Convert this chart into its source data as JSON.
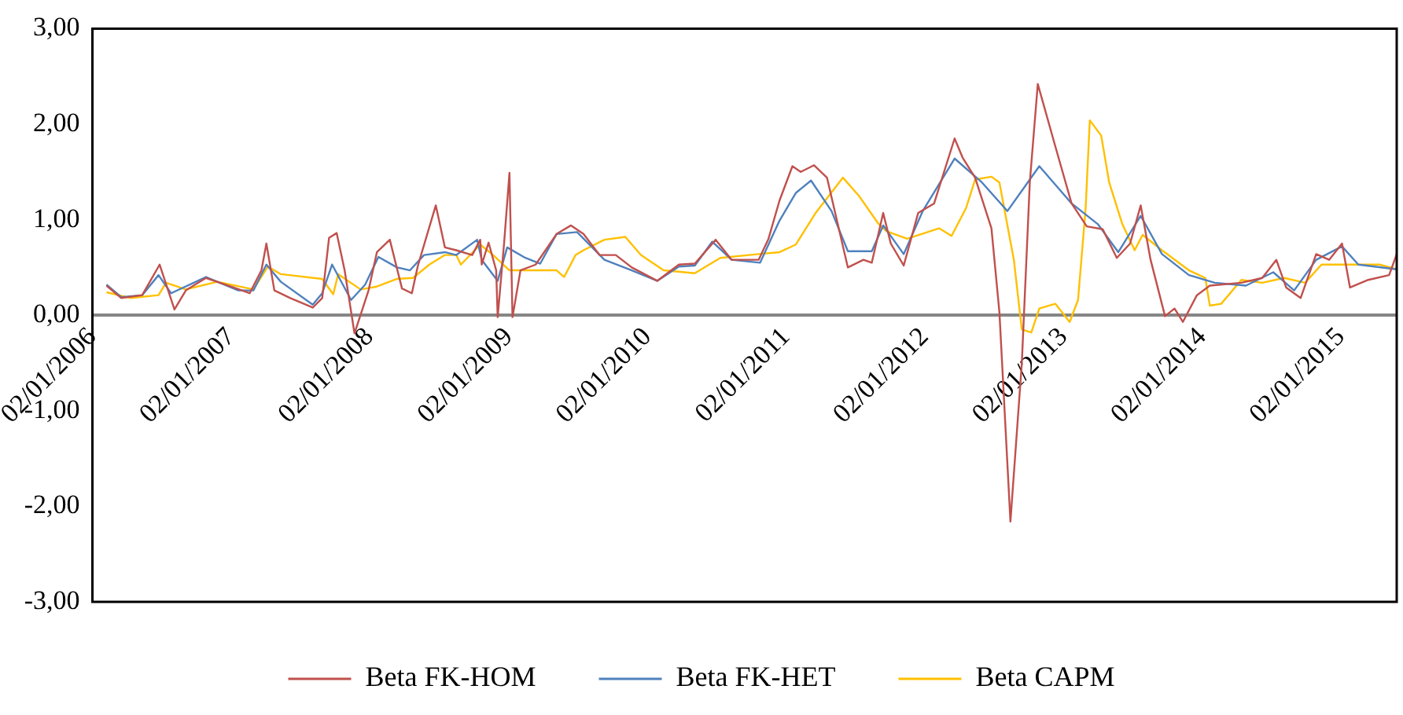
{
  "chart_data": {
    "type": "line",
    "xlim": [
      "2006-01-02",
      "2015-05-29"
    ],
    "ylim": [
      -3,
      3
    ],
    "xticks": [
      {
        "value": "2006-01-02",
        "label": "02/01/2006"
      },
      {
        "value": "2007-01-02",
        "label": "02/01/2007"
      },
      {
        "value": "2008-01-02",
        "label": "02/01/2008"
      },
      {
        "value": "2009-01-02",
        "label": "02/01/2009"
      },
      {
        "value": "2010-01-02",
        "label": "02/01/2010"
      },
      {
        "value": "2011-01-02",
        "label": "02/01/2011"
      },
      {
        "value": "2012-01-02",
        "label": "02/01/2012"
      },
      {
        "value": "2013-01-02",
        "label": "02/01/2013"
      },
      {
        "value": "2014-01-02",
        "label": "02/01/2014"
      },
      {
        "value": "2015-01-02",
        "label": "02/01/2015"
      }
    ],
    "yticks": [
      {
        "value": -3,
        "label": "-3,00"
      },
      {
        "value": -2,
        "label": "-2,00"
      },
      {
        "value": -1,
        "label": "-1,00"
      },
      {
        "value": 0,
        "label": "0,00"
      },
      {
        "value": 1,
        "label": "1,00"
      },
      {
        "value": 2,
        "label": "2,00"
      },
      {
        "value": 3,
        "label": "3,00"
      }
    ],
    "grid": false,
    "legend": "bottom",
    "marker": "none",
    "line_style": "solid",
    "series": [
      {
        "name": "Beta FK-HOM",
        "color": "#c0504d",
        "x": [
          "2006-02-08",
          "2006-03-19",
          "2006-05-13",
          "2006-06-28",
          "2006-08-06",
          "2006-09-05",
          "2006-10-28",
          "2007-01-09",
          "2007-02-20",
          "2007-03-23",
          "2007-04-05",
          "2007-04-26",
          "2007-06-07",
          "2007-08-05",
          "2007-08-30",
          "2007-09-17",
          "2007-10-07",
          "2007-10-28",
          "2007-11-23",
          "2007-12-30",
          "2008-01-21",
          "2008-02-24",
          "2008-03-27",
          "2008-04-22",
          "2008-05-08",
          "2008-06-24",
          "2008-07-18",
          "2008-08-17",
          "2008-09-28",
          "2008-10-19",
          "2008-10-23",
          "2008-11-10",
          "2008-11-30",
          "2008-12-04",
          "2008-12-21",
          "2009-01-04",
          "2009-01-12",
          "2009-02-02",
          "2009-03-14",
          "2009-05-08",
          "2009-06-15",
          "2009-07-18",
          "2009-08-29",
          "2009-10-11",
          "2009-11-22",
          "2010-01-28",
          "2010-03-26",
          "2010-05-07",
          "2010-07-01",
          "2010-08-12",
          "2010-10-22",
          "2010-11-17",
          "2010-12-16",
          "2011-01-19",
          "2011-02-10",
          "2011-03-17",
          "2011-04-20",
          "2011-06-14",
          "2011-07-25",
          "2011-08-16",
          "2011-09-15",
          "2011-10-05",
          "2011-11-08",
          "2011-12-16",
          "2012-01-27",
          "2012-03-21",
          "2012-04-11",
          "2012-05-14",
          "2012-06-26",
          "2012-07-17",
          "2012-08-15",
          "2012-09-14",
          "2012-10-05",
          "2012-10-26",
          "2012-12-11",
          "2013-01-23",
          "2013-03-04",
          "2013-04-15",
          "2013-05-22",
          "2013-06-26",
          "2013-07-24",
          "2013-08-19",
          "2013-09-26",
          "2013-10-21",
          "2013-11-12",
          "2013-12-19",
          "2014-01-22",
          "2014-04-15",
          "2014-06-09",
          "2014-07-16",
          "2014-08-11",
          "2014-09-18",
          "2014-10-29",
          "2014-12-02",
          "2015-01-05",
          "2015-01-26",
          "2015-03-15",
          "2015-05-09",
          "2015-05-29"
        ],
        "values": [
          0.31,
          0.18,
          0.21,
          0.53,
          0.06,
          0.26,
          0.39,
          0.29,
          0.23,
          0.47,
          0.75,
          0.26,
          0.18,
          0.08,
          0.18,
          0.81,
          0.86,
          0.47,
          -0.19,
          0.26,
          0.66,
          0.79,
          0.28,
          0.23,
          0.52,
          1.15,
          0.71,
          0.68,
          0.63,
          0.79,
          0.53,
          0.76,
          0.47,
          -0.02,
          0.76,
          1.49,
          -0.02,
          0.47,
          0.53,
          0.85,
          0.94,
          0.85,
          0.63,
          0.63,
          0.5,
          0.36,
          0.53,
          0.54,
          0.79,
          0.58,
          0.58,
          0.8,
          1.2,
          1.56,
          1.5,
          1.57,
          1.44,
          0.5,
          0.58,
          0.55,
          1.07,
          0.75,
          0.52,
          1.07,
          1.17,
          1.85,
          1.65,
          1.44,
          0.91,
          0.03,
          -2.16,
          -0.5,
          1.39,
          2.42,
          1.77,
          1.17,
          0.93,
          0.9,
          0.6,
          0.75,
          1.15,
          0.58,
          -0.01,
          0.07,
          -0.07,
          0.21,
          0.31,
          0.34,
          0.39,
          0.58,
          0.29,
          0.18,
          0.64,
          0.58,
          0.75,
          0.29,
          0.37,
          0.42,
          0.64
        ]
      },
      {
        "name": "Beta FK-HET",
        "color": "#4f81bd",
        "x": [
          "2006-02-08",
          "2006-03-19",
          "2006-05-13",
          "2006-06-25",
          "2006-07-28",
          "2006-10-28",
          "2007-01-21",
          "2007-03-02",
          "2007-04-05",
          "2007-05-13",
          "2007-08-05",
          "2007-08-30",
          "2007-09-25",
          "2007-11-14",
          "2007-12-21",
          "2008-01-25",
          "2008-03-14",
          "2008-04-17",
          "2008-05-24",
          "2008-07-18",
          "2008-08-17",
          "2008-10-11",
          "2008-10-23",
          "2008-12-04",
          "2008-12-29",
          "2009-02-15",
          "2009-03-26",
          "2009-05-08",
          "2009-07-01",
          "2009-09-11",
          "2009-11-22",
          "2010-01-28",
          "2010-03-26",
          "2010-05-07",
          "2010-06-22",
          "2010-08-12",
          "2010-10-26",
          "2010-12-16",
          "2011-01-28",
          "2011-03-09",
          "2011-05-02",
          "2011-06-14",
          "2011-08-16",
          "2011-09-15",
          "2011-11-08",
          "2011-12-28",
          "2012-03-21",
          "2012-06-01",
          "2012-08-07",
          "2012-10-30",
          "2013-01-23",
          "2013-04-03",
          "2013-05-26",
          "2013-07-24",
          "2013-09-18",
          "2013-11-28",
          "2014-02-04",
          "2014-04-27",
          "2014-07-08",
          "2014-09-01",
          "2014-10-29",
          "2015-01-05",
          "2015-02-17",
          "2015-05-29"
        ],
        "values": [
          0.32,
          0.19,
          0.21,
          0.42,
          0.23,
          0.4,
          0.26,
          0.26,
          0.53,
          0.35,
          0.11,
          0.23,
          0.53,
          0.16,
          0.32,
          0.61,
          0.5,
          0.47,
          0.63,
          0.66,
          0.63,
          0.79,
          0.58,
          0.36,
          0.71,
          0.6,
          0.54,
          0.85,
          0.87,
          0.58,
          0.47,
          0.36,
          0.51,
          0.52,
          0.77,
          0.58,
          0.55,
          0.99,
          1.28,
          1.41,
          1.09,
          0.67,
          0.67,
          0.94,
          0.64,
          1.09,
          1.64,
          1.39,
          1.09,
          1.56,
          1.17,
          0.95,
          0.66,
          1.04,
          0.64,
          0.42,
          0.34,
          0.31,
          0.45,
          0.26,
          0.58,
          0.72,
          0.53,
          0.48
        ]
      },
      {
        "name": "Beta CAPM",
        "color": "#ffc000",
        "x": [
          "2006-02-08",
          "2006-04-14",
          "2006-06-25",
          "2006-07-15",
          "2006-09-05",
          "2006-11-27",
          "2007-03-02",
          "2007-04-09",
          "2007-05-13",
          "2007-08-30",
          "2007-09-28",
          "2007-10-11",
          "2007-12-09",
          "2008-01-21",
          "2008-03-14",
          "2008-04-25",
          "2008-06-07",
          "2008-07-18",
          "2008-08-17",
          "2008-08-29",
          "2008-10-19",
          "2008-11-22",
          "2009-01-04",
          "2009-05-08",
          "2009-05-28",
          "2009-06-27",
          "2009-07-18",
          "2009-09-11",
          "2009-11-05",
          "2009-12-16",
          "2010-02-14",
          "2010-05-07",
          "2010-07-13",
          "2010-10-22",
          "2010-12-16",
          "2011-01-28",
          "2011-03-21",
          "2011-06-01",
          "2011-07-13",
          "2011-09-02",
          "2011-09-23",
          "2011-11-17",
          "2012-02-09",
          "2012-03-13",
          "2012-04-20",
          "2012-05-14",
          "2012-06-26",
          "2012-07-17",
          "2012-08-24",
          "2012-09-14",
          "2012-10-09",
          "2012-10-30",
          "2012-12-11",
          "2013-01-18",
          "2013-02-09",
          "2013-03-01",
          "2013-03-12",
          "2013-04-11",
          "2013-05-02",
          "2013-06-05",
          "2013-07-08",
          "2013-07-29",
          "2013-09-18",
          "2013-11-28",
          "2014-01-10",
          "2014-01-22",
          "2014-02-21",
          "2014-04-15",
          "2014-06-09",
          "2014-08-06",
          "2014-09-30",
          "2014-11-12",
          "2015-01-22",
          "2015-04-14",
          "2015-05-29"
        ],
        "values": [
          0.24,
          0.18,
          0.21,
          0.34,
          0.27,
          0.35,
          0.27,
          0.51,
          0.43,
          0.38,
          0.22,
          0.43,
          0.27,
          0.3,
          0.38,
          0.39,
          0.53,
          0.63,
          0.63,
          0.53,
          0.74,
          0.63,
          0.47,
          0.47,
          0.4,
          0.63,
          0.68,
          0.79,
          0.82,
          0.63,
          0.47,
          0.44,
          0.6,
          0.64,
          0.66,
          0.74,
          1.07,
          1.44,
          1.25,
          0.96,
          0.88,
          0.8,
          0.91,
          0.83,
          1.12,
          1.42,
          1.45,
          1.39,
          0.58,
          -0.15,
          -0.18,
          0.07,
          0.12,
          -0.07,
          0.16,
          1.12,
          2.04,
          1.88,
          1.39,
          0.96,
          0.68,
          0.84,
          0.68,
          0.47,
          0.39,
          0.1,
          0.12,
          0.37,
          0.34,
          0.39,
          0.34,
          0.53,
          0.53,
          0.53,
          0.48
        ]
      }
    ]
  }
}
